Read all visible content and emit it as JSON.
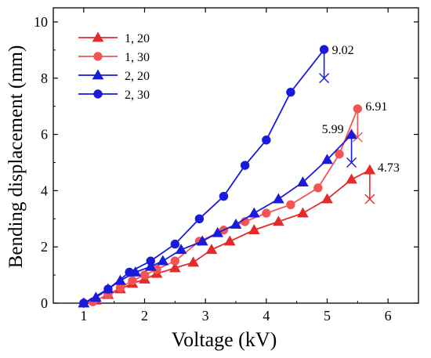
{
  "chart_data": {
    "type": "line",
    "title": "",
    "xlabel": "Voltage (kV)",
    "ylabel": "Bending displacement (mm)",
    "xlim": [
      0.5,
      6.5
    ],
    "ylim": [
      0,
      10.5
    ],
    "xticks": [
      1,
      2,
      3,
      4,
      5,
      6
    ],
    "yticks": [
      0,
      2,
      4,
      6,
      8,
      10
    ],
    "grid": false,
    "legend_position": "top-left",
    "series": [
      {
        "name": "1, 20",
        "color": "#e32b2b",
        "marker": "triangle",
        "x": [
          1.0,
          1.2,
          1.4,
          1.6,
          1.8,
          2.0,
          2.2,
          2.5,
          2.8,
          3.1,
          3.4,
          3.8,
          4.2,
          4.6,
          5.0,
          5.4,
          5.7
        ],
        "y": [
          0.0,
          0.1,
          0.3,
          0.5,
          0.7,
          0.85,
          1.05,
          1.25,
          1.45,
          1.9,
          2.2,
          2.6,
          2.9,
          3.2,
          3.7,
          4.4,
          4.73
        ],
        "max_label": "4.73",
        "end_value": 3.7
      },
      {
        "name": "1, 30",
        "color": "#f25555",
        "marker": "circle",
        "x": [
          1.0,
          1.15,
          1.4,
          1.6,
          1.8,
          2.0,
          2.2,
          2.5,
          2.9,
          3.3,
          3.65,
          4.0,
          4.4,
          4.85,
          5.2,
          5.5
        ],
        "y": [
          0.0,
          0.05,
          0.3,
          0.55,
          0.8,
          1.0,
          1.2,
          1.5,
          2.2,
          2.6,
          2.9,
          3.2,
          3.5,
          4.1,
          5.3,
          6.91
        ],
        "max_label": "6.91",
        "end_value": 5.9
      },
      {
        "name": "2, 20",
        "color": "#1a1adb",
        "marker": "triangle",
        "x": [
          1.0,
          1.2,
          1.4,
          1.6,
          1.85,
          2.1,
          2.3,
          2.6,
          2.95,
          3.2,
          3.5,
          3.8,
          4.2,
          4.6,
          5.0,
          5.4
        ],
        "y": [
          0.0,
          0.2,
          0.5,
          0.8,
          1.1,
          1.3,
          1.5,
          1.9,
          2.2,
          2.5,
          2.8,
          3.2,
          3.7,
          4.3,
          5.1,
          5.99
        ],
        "max_label": "5.99",
        "end_value": 5.0
      },
      {
        "name": "2, 30",
        "color": "#1a1adb",
        "marker": "circle",
        "x": [
          1.0,
          1.4,
          1.75,
          2.1,
          2.5,
          2.9,
          3.3,
          3.65,
          4.0,
          4.4,
          4.95
        ],
        "y": [
          0.0,
          0.5,
          1.1,
          1.5,
          2.1,
          3.0,
          3.8,
          4.9,
          5.8,
          7.5,
          9.02
        ],
        "max_label": "9.02",
        "end_value": 8.0
      }
    ]
  }
}
